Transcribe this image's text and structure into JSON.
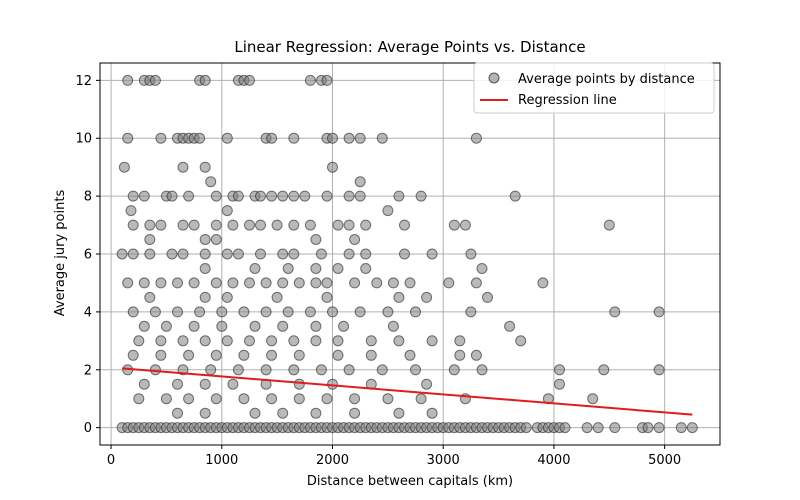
{
  "chart_data": {
    "type": "scatter",
    "title": "Linear Regression: Average Points vs. Distance",
    "xlabel": "Distance between capitals (km)",
    "ylabel": "Average jury points",
    "xlim": [
      -100,
      5500
    ],
    "ylim": [
      -0.6,
      12.6
    ],
    "xticks": [
      0,
      1000,
      2000,
      3000,
      4000,
      5000
    ],
    "yticks": [
      0,
      2,
      4,
      6,
      8,
      10,
      12
    ],
    "grid": true,
    "legend_position": "top-right",
    "colors": {
      "points": "#808080",
      "point_edge": "#202020",
      "regression": "#e41a1c"
    },
    "series": [
      {
        "name": "Average points by distance",
        "type": "scatter",
        "points": [
          [
            150,
            12
          ],
          [
            300,
            12
          ],
          [
            350,
            12
          ],
          [
            400,
            12
          ],
          [
            800,
            12
          ],
          [
            850,
            12
          ],
          [
            1150,
            12
          ],
          [
            1200,
            12
          ],
          [
            1250,
            12
          ],
          [
            1800,
            12
          ],
          [
            1900,
            12
          ],
          [
            1950,
            12
          ],
          [
            150,
            10
          ],
          [
            450,
            10
          ],
          [
            600,
            10
          ],
          [
            650,
            10
          ],
          [
            700,
            10
          ],
          [
            750,
            10
          ],
          [
            800,
            10
          ],
          [
            1050,
            10
          ],
          [
            1400,
            10
          ],
          [
            1450,
            10
          ],
          [
            1650,
            10
          ],
          [
            1950,
            10
          ],
          [
            2000,
            10
          ],
          [
            2150,
            10
          ],
          [
            2250,
            10
          ],
          [
            2450,
            10
          ],
          [
            3300,
            10
          ],
          [
            120,
            9
          ],
          [
            650,
            9
          ],
          [
            850,
            9
          ],
          [
            2000,
            9
          ],
          [
            900,
            8.5
          ],
          [
            2250,
            8.5
          ],
          [
            200,
            8
          ],
          [
            300,
            8
          ],
          [
            500,
            8
          ],
          [
            550,
            8
          ],
          [
            700,
            8
          ],
          [
            950,
            8
          ],
          [
            1100,
            8
          ],
          [
            1150,
            8
          ],
          [
            1300,
            8
          ],
          [
            1350,
            8
          ],
          [
            1450,
            8
          ],
          [
            1550,
            8
          ],
          [
            1650,
            8
          ],
          [
            1750,
            8
          ],
          [
            1950,
            8
          ],
          [
            2150,
            8
          ],
          [
            2250,
            8
          ],
          [
            2600,
            8
          ],
          [
            2800,
            8
          ],
          [
            3650,
            8
          ],
          [
            180,
            7.5
          ],
          [
            1050,
            7.5
          ],
          [
            2500,
            7.5
          ],
          [
            200,
            7
          ],
          [
            350,
            7
          ],
          [
            450,
            7
          ],
          [
            650,
            7
          ],
          [
            750,
            7
          ],
          [
            950,
            7
          ],
          [
            1100,
            7
          ],
          [
            1250,
            7
          ],
          [
            1350,
            7
          ],
          [
            1500,
            7
          ],
          [
            1650,
            7
          ],
          [
            1800,
            7
          ],
          [
            2050,
            7
          ],
          [
            2150,
            7
          ],
          [
            2300,
            7
          ],
          [
            2650,
            7
          ],
          [
            3100,
            7
          ],
          [
            3200,
            7
          ],
          [
            4500,
            7
          ],
          [
            350,
            6.5
          ],
          [
            850,
            6.5
          ],
          [
            950,
            6.5
          ],
          [
            1850,
            6.5
          ],
          [
            2200,
            6.5
          ],
          [
            100,
            6
          ],
          [
            200,
            6
          ],
          [
            350,
            6
          ],
          [
            550,
            6
          ],
          [
            650,
            6
          ],
          [
            850,
            6
          ],
          [
            1050,
            6
          ],
          [
            1150,
            6
          ],
          [
            1350,
            6
          ],
          [
            1550,
            6
          ],
          [
            1650,
            6
          ],
          [
            1900,
            6
          ],
          [
            2150,
            6
          ],
          [
            2300,
            6
          ],
          [
            2650,
            6
          ],
          [
            2900,
            6
          ],
          [
            3250,
            6
          ],
          [
            850,
            5.5
          ],
          [
            1300,
            5.5
          ],
          [
            1600,
            5.5
          ],
          [
            1850,
            5.5
          ],
          [
            2050,
            5.5
          ],
          [
            2300,
            5.5
          ],
          [
            3350,
            5.5
          ],
          [
            150,
            5
          ],
          [
            300,
            5
          ],
          [
            450,
            5
          ],
          [
            600,
            5
          ],
          [
            750,
            5
          ],
          [
            950,
            5
          ],
          [
            1100,
            5
          ],
          [
            1250,
            5
          ],
          [
            1400,
            5
          ],
          [
            1550,
            5
          ],
          [
            1700,
            5
          ],
          [
            1850,
            5
          ],
          [
            1950,
            5
          ],
          [
            2200,
            5
          ],
          [
            2400,
            5
          ],
          [
            2550,
            5
          ],
          [
            2700,
            5
          ],
          [
            3050,
            5
          ],
          [
            3300,
            5
          ],
          [
            3900,
            5
          ],
          [
            350,
            4.5
          ],
          [
            850,
            4.5
          ],
          [
            1050,
            4.5
          ],
          [
            1500,
            4.5
          ],
          [
            1950,
            4.5
          ],
          [
            2600,
            4.5
          ],
          [
            2850,
            4.5
          ],
          [
            3400,
            4.5
          ],
          [
            200,
            4
          ],
          [
            400,
            4
          ],
          [
            600,
            4
          ],
          [
            800,
            4
          ],
          [
            1000,
            4
          ],
          [
            1200,
            4
          ],
          [
            1400,
            4
          ],
          [
            1600,
            4
          ],
          [
            1800,
            4
          ],
          [
            2000,
            4
          ],
          [
            2250,
            4
          ],
          [
            2500,
            4
          ],
          [
            2750,
            4
          ],
          [
            3250,
            4
          ],
          [
            4550,
            4
          ],
          [
            4950,
            4
          ],
          [
            300,
            3.5
          ],
          [
            500,
            3.5
          ],
          [
            750,
            3.5
          ],
          [
            1000,
            3.5
          ],
          [
            1300,
            3.5
          ],
          [
            1550,
            3.5
          ],
          [
            1850,
            3.5
          ],
          [
            2100,
            3.5
          ],
          [
            2550,
            3.5
          ],
          [
            3600,
            3.5
          ],
          [
            250,
            3
          ],
          [
            450,
            3
          ],
          [
            650,
            3
          ],
          [
            850,
            3
          ],
          [
            1050,
            3
          ],
          [
            1250,
            3
          ],
          [
            1450,
            3
          ],
          [
            1650,
            3
          ],
          [
            1850,
            3
          ],
          [
            2050,
            3
          ],
          [
            2350,
            3
          ],
          [
            2600,
            3
          ],
          [
            2900,
            3
          ],
          [
            3150,
            3
          ],
          [
            3700,
            3
          ],
          [
            200,
            2.5
          ],
          [
            450,
            2.5
          ],
          [
            700,
            2.5
          ],
          [
            950,
            2.5
          ],
          [
            1200,
            2.5
          ],
          [
            1450,
            2.5
          ],
          [
            1700,
            2.5
          ],
          [
            2050,
            2.5
          ],
          [
            2350,
            2.5
          ],
          [
            2700,
            2.5
          ],
          [
            3150,
            2.5
          ],
          [
            3300,
            2.5
          ],
          [
            150,
            2
          ],
          [
            400,
            2
          ],
          [
            650,
            2
          ],
          [
            900,
            2
          ],
          [
            1150,
            2
          ],
          [
            1400,
            2
          ],
          [
            1650,
            2
          ],
          [
            1900,
            2
          ],
          [
            2150,
            2
          ],
          [
            2450,
            2
          ],
          [
            2750,
            2
          ],
          [
            3100,
            2
          ],
          [
            3350,
            2
          ],
          [
            4050,
            2
          ],
          [
            4450,
            2
          ],
          [
            4950,
            2
          ],
          [
            300,
            1.5
          ],
          [
            600,
            1.5
          ],
          [
            850,
            1.5
          ],
          [
            1100,
            1.5
          ],
          [
            1400,
            1.5
          ],
          [
            1700,
            1.5
          ],
          [
            2000,
            1.5
          ],
          [
            2350,
            1.5
          ],
          [
            2850,
            1.5
          ],
          [
            4050,
            1.5
          ],
          [
            250,
            1
          ],
          [
            500,
            1
          ],
          [
            700,
            1
          ],
          [
            950,
            1
          ],
          [
            1200,
            1
          ],
          [
            1450,
            1
          ],
          [
            1700,
            1
          ],
          [
            1950,
            1
          ],
          [
            2200,
            1
          ],
          [
            2500,
            1
          ],
          [
            2800,
            1
          ],
          [
            3200,
            1
          ],
          [
            3950,
            1
          ],
          [
            4350,
            1
          ],
          [
            600,
            0.5
          ],
          [
            850,
            0.5
          ],
          [
            1300,
            0.5
          ],
          [
            1550,
            0.5
          ],
          [
            1850,
            0.5
          ],
          [
            2200,
            0.5
          ],
          [
            2600,
            0.5
          ],
          [
            2900,
            0.5
          ],
          [
            100,
            0
          ],
          [
            150,
            0
          ],
          [
            200,
            0
          ],
          [
            250,
            0
          ],
          [
            300,
            0
          ],
          [
            350,
            0
          ],
          [
            400,
            0
          ],
          [
            450,
            0
          ],
          [
            500,
            0
          ],
          [
            550,
            0
          ],
          [
            600,
            0
          ],
          [
            650,
            0
          ],
          [
            700,
            0
          ],
          [
            750,
            0
          ],
          [
            800,
            0
          ],
          [
            850,
            0
          ],
          [
            900,
            0
          ],
          [
            950,
            0
          ],
          [
            1000,
            0
          ],
          [
            1050,
            0
          ],
          [
            1100,
            0
          ],
          [
            1150,
            0
          ],
          [
            1200,
            0
          ],
          [
            1250,
            0
          ],
          [
            1300,
            0
          ],
          [
            1350,
            0
          ],
          [
            1400,
            0
          ],
          [
            1450,
            0
          ],
          [
            1500,
            0
          ],
          [
            1550,
            0
          ],
          [
            1600,
            0
          ],
          [
            1650,
            0
          ],
          [
            1700,
            0
          ],
          [
            1750,
            0
          ],
          [
            1800,
            0
          ],
          [
            1850,
            0
          ],
          [
            1900,
            0
          ],
          [
            1950,
            0
          ],
          [
            2000,
            0
          ],
          [
            2050,
            0
          ],
          [
            2100,
            0
          ],
          [
            2150,
            0
          ],
          [
            2200,
            0
          ],
          [
            2250,
            0
          ],
          [
            2300,
            0
          ],
          [
            2350,
            0
          ],
          [
            2400,
            0
          ],
          [
            2450,
            0
          ],
          [
            2500,
            0
          ],
          [
            2550,
            0
          ],
          [
            2600,
            0
          ],
          [
            2650,
            0
          ],
          [
            2700,
            0
          ],
          [
            2750,
            0
          ],
          [
            2800,
            0
          ],
          [
            2850,
            0
          ],
          [
            2900,
            0
          ],
          [
            2950,
            0
          ],
          [
            3000,
            0
          ],
          [
            3050,
            0
          ],
          [
            3100,
            0
          ],
          [
            3150,
            0
          ],
          [
            3200,
            0
          ],
          [
            3250,
            0
          ],
          [
            3300,
            0
          ],
          [
            3350,
            0
          ],
          [
            3400,
            0
          ],
          [
            3450,
            0
          ],
          [
            3500,
            0
          ],
          [
            3550,
            0
          ],
          [
            3600,
            0
          ],
          [
            3650,
            0
          ],
          [
            3700,
            0
          ],
          [
            3750,
            0
          ],
          [
            3850,
            0
          ],
          [
            3900,
            0
          ],
          [
            3950,
            0
          ],
          [
            4000,
            0
          ],
          [
            4050,
            0
          ],
          [
            4100,
            0
          ],
          [
            4300,
            0
          ],
          [
            4400,
            0
          ],
          [
            4550,
            0
          ],
          [
            4800,
            0
          ],
          [
            4850,
            0
          ],
          [
            4950,
            0
          ],
          [
            5150,
            0
          ],
          [
            5250,
            0
          ]
        ]
      },
      {
        "name": "Regression line",
        "type": "line",
        "points": [
          [
            100,
            2.05
          ],
          [
            5250,
            0.45
          ]
        ]
      }
    ]
  }
}
